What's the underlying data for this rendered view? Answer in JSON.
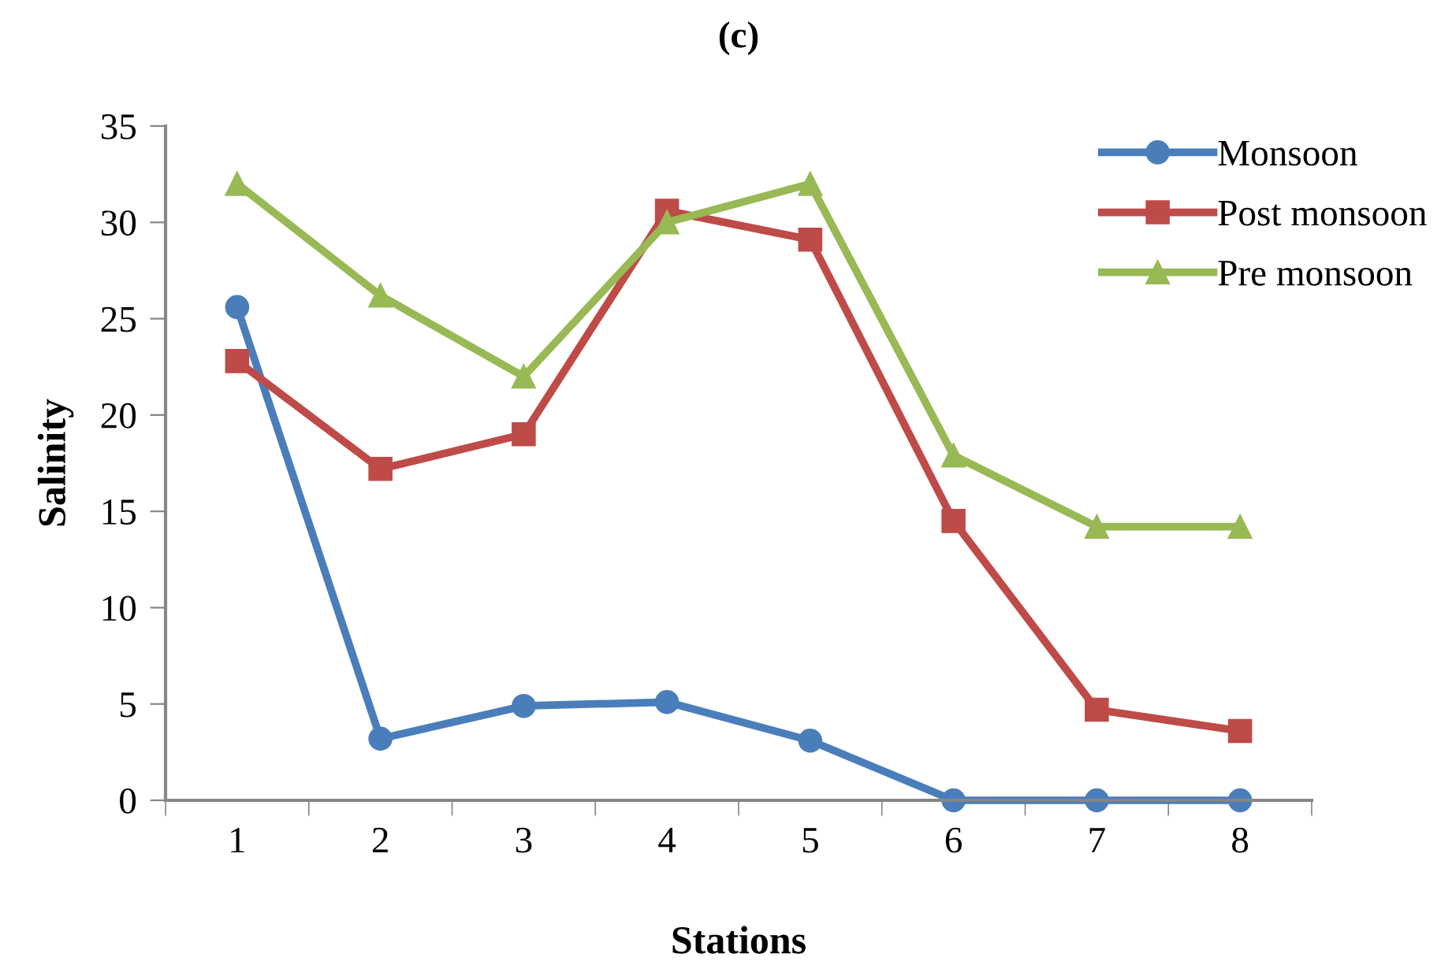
{
  "chart_data": {
    "type": "line",
    "title": "(c)",
    "xlabel": "Stations",
    "ylabel": "Salinity",
    "categories": [
      "1",
      "2",
      "3",
      "4",
      "5",
      "6",
      "7",
      "8"
    ],
    "series": [
      {
        "name": "Monsoon",
        "color": "#4a7ebb",
        "marker": "circle",
        "values": [
          25.6,
          3.2,
          4.9,
          5.1,
          3.1,
          0,
          0,
          0
        ]
      },
      {
        "name": "Post monsoon",
        "color": "#be4b48",
        "marker": "square",
        "values": [
          22.8,
          17.2,
          19.0,
          30.6,
          29.1,
          14.5,
          4.7,
          3.6
        ]
      },
      {
        "name": "Pre monsoon",
        "color": "#98b954",
        "marker": "triangle",
        "values": [
          32.0,
          26.2,
          22.0,
          30.0,
          32.0,
          17.9,
          14.2,
          14.2
        ]
      }
    ],
    "ylim": [
      0,
      35
    ],
    "yticks": [
      0,
      5,
      10,
      15,
      20,
      25,
      30,
      35
    ],
    "grid": false,
    "legend": "top right",
    "line_style": "solid"
  }
}
